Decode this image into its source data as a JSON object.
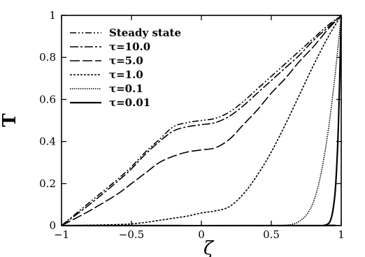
{
  "chart_data": {
    "type": "line",
    "title": "",
    "xlabel": "ζ",
    "ylabel": "T̅",
    "xlim": [
      -1,
      1
    ],
    "ylim": [
      0,
      1
    ],
    "x_ticks": [
      "−1",
      "−0.5",
      "0",
      "0.5",
      "1"
    ],
    "y_ticks": [
      "0",
      "0.2",
      "0.4",
      "0.6",
      "0.8",
      "1"
    ],
    "grid": false,
    "legend_position": "top-left",
    "series": [
      {
        "name": "Steady state",
        "dash": "dash-dot-dot",
        "x": [
          -1,
          -0.8,
          -0.6,
          -0.5,
          -0.4,
          -0.3,
          -0.2,
          -0.1,
          0,
          0.1,
          0.2,
          0.3,
          0.4,
          0.5,
          0.6,
          0.7,
          0.8,
          0.9,
          1
        ],
        "y": [
          0,
          0.11,
          0.22,
          0.28,
          0.35,
          0.41,
          0.47,
          0.49,
          0.5,
          0.51,
          0.54,
          0.59,
          0.65,
          0.71,
          0.77,
          0.83,
          0.89,
          0.95,
          1
        ]
      },
      {
        "name": "τ=10.0",
        "dash": "long-dash-dot",
        "x": [
          -1,
          -0.8,
          -0.6,
          -0.5,
          -0.4,
          -0.3,
          -0.2,
          -0.1,
          0,
          0.1,
          0.2,
          0.3,
          0.4,
          0.5,
          0.6,
          0.7,
          0.8,
          0.9,
          1
        ],
        "y": [
          0,
          0.1,
          0.21,
          0.27,
          0.34,
          0.4,
          0.45,
          0.47,
          0.48,
          0.49,
          0.52,
          0.57,
          0.63,
          0.69,
          0.75,
          0.81,
          0.88,
          0.94,
          1
        ]
      },
      {
        "name": "τ=5.0",
        "dash": "long-dash",
        "x": [
          -1,
          -0.8,
          -0.6,
          -0.5,
          -0.4,
          -0.3,
          -0.2,
          -0.1,
          0,
          0.1,
          0.2,
          0.3,
          0.4,
          0.5,
          0.6,
          0.7,
          0.8,
          0.9,
          1
        ],
        "y": [
          0,
          0.07,
          0.15,
          0.2,
          0.25,
          0.3,
          0.33,
          0.35,
          0.36,
          0.37,
          0.41,
          0.48,
          0.55,
          0.63,
          0.7,
          0.78,
          0.85,
          0.93,
          1
        ]
      },
      {
        "name": "τ=1.0",
        "dash": "dense-dash",
        "x": [
          -1,
          -0.8,
          -0.6,
          -0.5,
          -0.4,
          -0.3,
          -0.2,
          -0.1,
          0,
          0.1,
          0.2,
          0.3,
          0.4,
          0.5,
          0.6,
          0.7,
          0.8,
          0.9,
          1
        ],
        "y": [
          0,
          0.002,
          0.005,
          0.008,
          0.015,
          0.025,
          0.035,
          0.045,
          0.06,
          0.07,
          0.09,
          0.15,
          0.24,
          0.35,
          0.48,
          0.62,
          0.76,
          0.89,
          1
        ]
      },
      {
        "name": "τ=0.1",
        "dash": "fine-dot",
        "x": [
          -1,
          0,
          0.5,
          0.6,
          0.65,
          0.7,
          0.75,
          0.8,
          0.85,
          0.9,
          0.95,
          1
        ],
        "y": [
          0,
          0,
          0,
          0.002,
          0.006,
          0.02,
          0.05,
          0.11,
          0.23,
          0.42,
          0.68,
          1
        ]
      },
      {
        "name": "τ=0.01",
        "dash": "solid",
        "x": [
          -1,
          0.8,
          0.88,
          0.9,
          0.92,
          0.94,
          0.96,
          0.98,
          1
        ],
        "y": [
          0,
          0,
          0.002,
          0.006,
          0.02,
          0.07,
          0.19,
          0.48,
          1
        ]
      }
    ]
  }
}
